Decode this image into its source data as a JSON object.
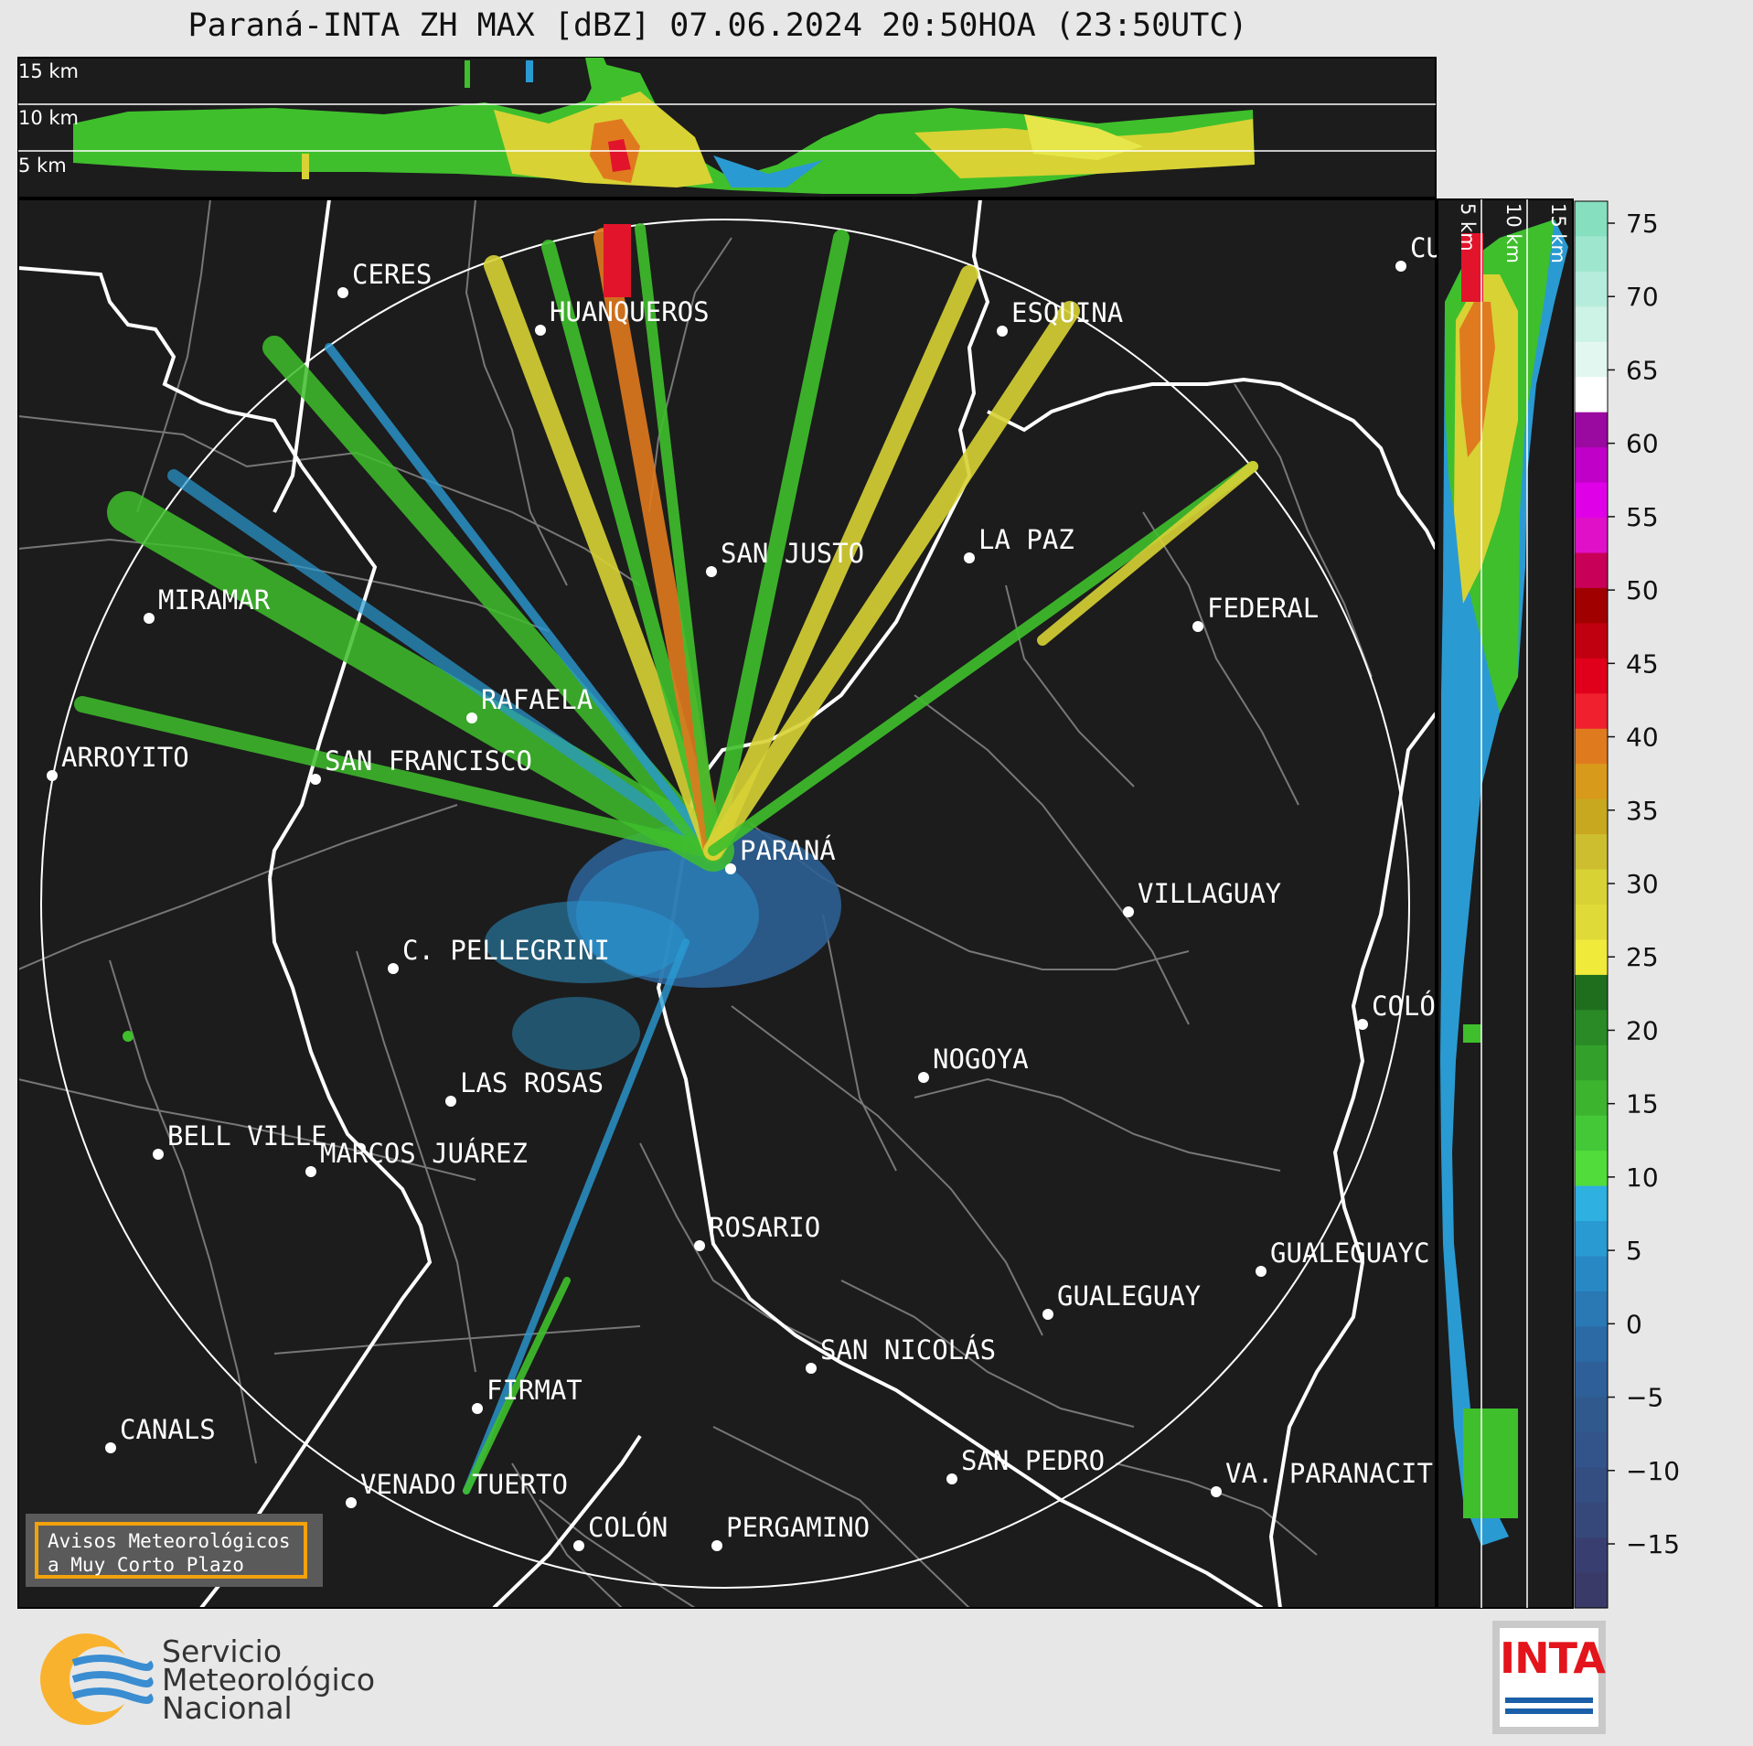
{
  "title": "Paraná-INTA ZH MAX [dBZ] 07.06.2024 20:50HOA (23:50UTC)",
  "top_profile_labels": [
    "15 km",
    "10 km",
    "5 km"
  ],
  "side_profile_labels": [
    "5 km",
    "10 km",
    "15 km"
  ],
  "colorbar": {
    "ticks": [
      "75",
      "70",
      "65",
      "60",
      "55",
      "50",
      "45",
      "40",
      "35",
      "30",
      "25",
      "20",
      "15",
      "10",
      "5",
      "0",
      "−5",
      "−10",
      "−15"
    ]
  },
  "cities": [
    "CERES",
    "HUANQUEROS",
    "ESQUINA",
    "CU",
    "LA PAZ",
    "SAN JUSTO",
    "MIRAMAR",
    "FEDERAL",
    "RAFAELA",
    "ARROYITO",
    "SAN FRANCISCO",
    "PARANÁ",
    "VILLAGUAY",
    "C. PELLEGRINI",
    "COLÓ",
    "NOGOYA",
    "LAS ROSAS",
    "BELL VILLE",
    "MARCOS JUÁREZ",
    "ROSARIO",
    "GUALEGUAYC",
    "GUALEGUAY",
    "SAN NICOLÁS",
    "FIRMAT",
    "CANALS",
    "SAN PEDRO",
    "VENADO TUERTO",
    "VA. PARANACIT",
    "COLÓN",
    "PERGAMINO"
  ],
  "avisos": {
    "line1": "Avisos Meteorológicos",
    "line2": "a Muy Corto Plazo"
  },
  "smn": {
    "line1": "Servicio",
    "line2": "Meteorológico",
    "line3": "Nacional"
  },
  "inta": "INTA",
  "colors": {
    "map_bg": "#1c1c1c",
    "border": "#ffffff",
    "dept": "#777777",
    "accent": "#f2a20c"
  }
}
